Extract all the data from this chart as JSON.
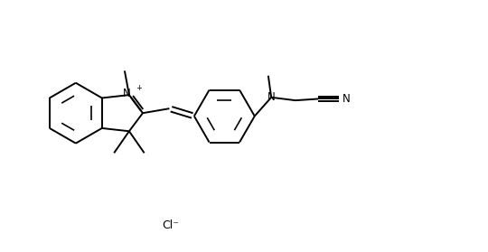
{
  "background_color": "#ffffff",
  "line_color": "#000000",
  "lw": 1.4,
  "fs": 8.5,
  "figsize": [
    5.4,
    2.79
  ],
  "dpi": 100,
  "xlim": [
    0,
    10
  ],
  "ylim": [
    0,
    5.17
  ],
  "cl_label": "Cl⁻",
  "n_plus_label": "N",
  "plus_label": "+",
  "n_amino_label": "N",
  "n_cn_label": "N"
}
